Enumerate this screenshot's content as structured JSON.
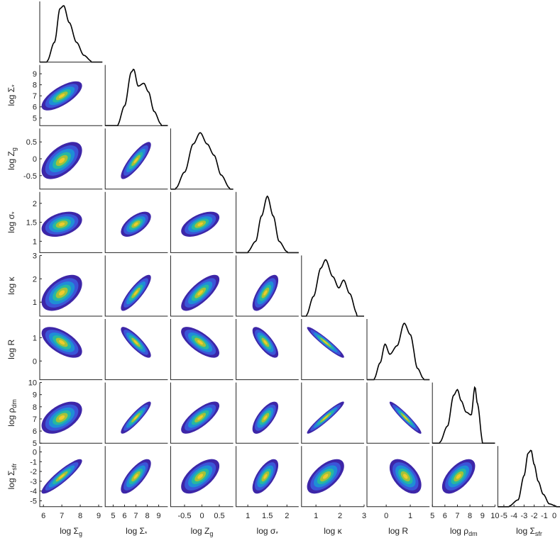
{
  "chart_data": {
    "type": "corner",
    "variables": [
      {
        "label": "log Σ",
        "sub": "g",
        "range": [
          5.8,
          9.2
        ],
        "ticks": [
          6,
          7,
          8,
          9
        ],
        "mode": 7.0,
        "spread": 0.5,
        "kde": [
          [
            6.2,
            0.02
          ],
          [
            6.6,
            0.35
          ],
          [
            6.9,
            0.95
          ],
          [
            7.1,
            1.0
          ],
          [
            7.4,
            0.7
          ],
          [
            7.8,
            0.35
          ],
          [
            8.2,
            0.12
          ],
          [
            8.6,
            0.02
          ]
        ]
      },
      {
        "label": "log Σ",
        "sub": "*",
        "range": [
          4.3,
          9.8
        ],
        "ticks": [
          5,
          6,
          7,
          8,
          9
        ],
        "mode": 7.0,
        "spread": 0.6,
        "kde": [
          [
            5.4,
            0.02
          ],
          [
            6.0,
            0.35
          ],
          [
            6.6,
            0.95
          ],
          [
            6.8,
            1.0
          ],
          [
            7.2,
            0.7
          ],
          [
            7.7,
            0.75
          ],
          [
            8.1,
            0.6
          ],
          [
            8.6,
            0.25
          ],
          [
            9.2,
            0.03
          ]
        ]
      },
      {
        "label": "log Z",
        "sub": "g",
        "range": [
          -0.9,
          0.9
        ],
        "ticks": [
          -0.5,
          0,
          0.5
        ],
        "mode": -0.05,
        "spread": 0.25,
        "kde": [
          [
            -0.75,
            0.02
          ],
          [
            -0.5,
            0.3
          ],
          [
            -0.25,
            0.8
          ],
          [
            -0.05,
            1.0
          ],
          [
            0.15,
            0.8
          ],
          [
            0.35,
            0.6
          ],
          [
            0.55,
            0.25
          ],
          [
            0.8,
            0.02
          ]
        ]
      },
      {
        "label": "log σ",
        "sub": "*",
        "range": [
          0.7,
          2.3
        ],
        "ticks": [
          1,
          1.5,
          2
        ],
        "mode": 1.45,
        "spread": 0.15,
        "kde": [
          [
            1.0,
            0.02
          ],
          [
            1.2,
            0.2
          ],
          [
            1.35,
            0.65
          ],
          [
            1.5,
            1.0
          ],
          [
            1.65,
            0.65
          ],
          [
            1.8,
            0.2
          ],
          [
            2.0,
            0.02
          ]
        ]
      },
      {
        "label": "log κ",
        "sub": "",
        "range": [
          0.4,
          3.0
        ],
        "ticks": [
          1,
          2,
          3
        ],
        "mode": 1.4,
        "spread": 0.35,
        "kde": [
          [
            0.6,
            0.02
          ],
          [
            0.9,
            0.35
          ],
          [
            1.2,
            0.85
          ],
          [
            1.4,
            1.0
          ],
          [
            1.7,
            0.7
          ],
          [
            1.95,
            0.5
          ],
          [
            2.15,
            0.64
          ],
          [
            2.4,
            0.4
          ],
          [
            2.7,
            0.05
          ]
        ]
      },
      {
        "label": "log R",
        "sub": "",
        "range": [
          -0.8,
          1.8
        ],
        "ticks": [
          0,
          1
        ],
        "mode": 0.8,
        "spread": 0.3,
        "kde": [
          [
            -0.5,
            0.02
          ],
          [
            -0.25,
            0.3
          ],
          [
            -0.05,
            0.63
          ],
          [
            0.15,
            0.45
          ],
          [
            0.45,
            0.6
          ],
          [
            0.75,
            1.0
          ],
          [
            1.0,
            0.8
          ],
          [
            1.3,
            0.2
          ],
          [
            1.55,
            0.02
          ]
        ]
      },
      {
        "label": "log ρ",
        "sub": "dm",
        "range": [
          5.0,
          10.0
        ],
        "ticks": [
          5,
          6,
          7,
          8,
          9,
          10
        ],
        "mode": 7.1,
        "spread": 0.6,
        "kde": [
          [
            5.6,
            0.02
          ],
          [
            6.2,
            0.3
          ],
          [
            6.7,
            0.85
          ],
          [
            7.0,
            0.95
          ],
          [
            7.3,
            0.75
          ],
          [
            7.7,
            0.55
          ],
          [
            8.1,
            0.5
          ],
          [
            8.4,
            1.0
          ],
          [
            8.6,
            0.7
          ],
          [
            9.0,
            0.05
          ]
        ]
      },
      {
        "label": "log Σ",
        "sub": "sfr",
        "range": [
          -5.6,
          0.6
        ],
        "ticks": [
          -5,
          -4,
          -3,
          -2,
          -1,
          0
        ],
        "mode": -2.5,
        "spread": 0.8,
        "kde": [
          [
            -4.5,
            0.01
          ],
          [
            -3.6,
            0.12
          ],
          [
            -3.0,
            0.55
          ],
          [
            -2.6,
            0.95
          ],
          [
            -2.3,
            1.0
          ],
          [
            -2.0,
            0.75
          ],
          [
            -1.6,
            0.45
          ],
          [
            -1.1,
            0.22
          ],
          [
            -0.5,
            0.05
          ],
          [
            0.2,
            0.01
          ]
        ]
      }
    ],
    "correlations": {
      "1,0": 0.7,
      "2,0": 0.55,
      "2,1": 0.85,
      "3,0": 0.35,
      "3,1": 0.6,
      "3,2": 0.55,
      "4,0": 0.5,
      "4,1": 0.85,
      "4,2": 0.75,
      "4,3": 0.7,
      "5,0": -0.6,
      "5,1": -0.85,
      "5,2": -0.7,
      "5,3": -0.75,
      "5,4": -0.95,
      "6,0": 0.5,
      "6,1": 0.9,
      "6,2": 0.75,
      "6,3": 0.7,
      "6,4": 0.95,
      "6,5": -0.95,
      "7,0": 0.9,
      "7,1": 0.75,
      "7,2": 0.6,
      "7,3": 0.65,
      "7,4": 0.6,
      "7,5": -0.5,
      "7,6": 0.6
    },
    "contour_colors": [
      "#3d26a8",
      "#3b55d8",
      "#1e8ed6",
      "#27b8a0",
      "#a3c23a",
      "#f0cb2c"
    ],
    "kde_color": "#000000",
    "grid": false
  }
}
